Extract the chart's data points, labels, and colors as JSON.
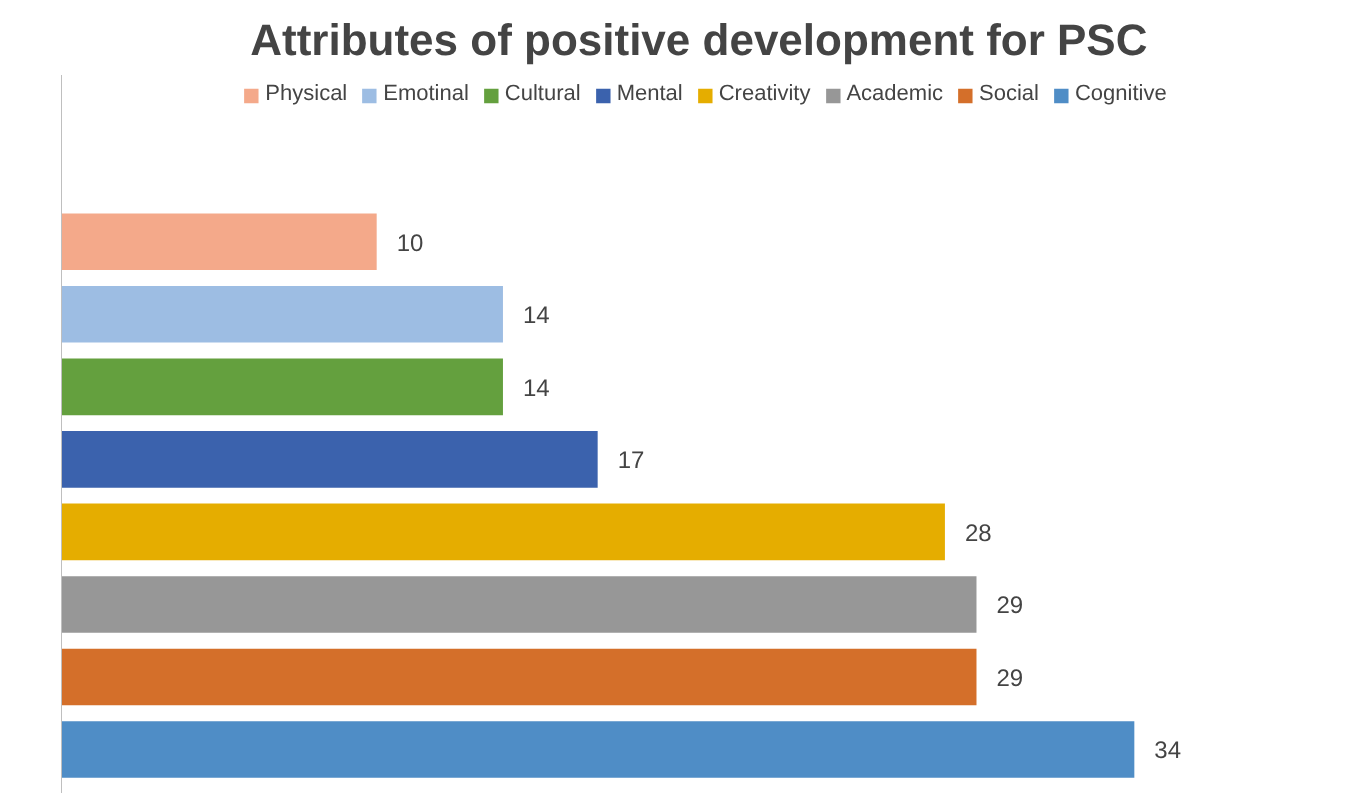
{
  "chart_data": {
    "type": "bar",
    "orientation": "horizontal",
    "title": "Attributes of positive development for  PSC",
    "categories": [
      null,
      null,
      null,
      null,
      null,
      null,
      null,
      null
    ],
    "series": [
      {
        "name": "Physical",
        "color": "#f4a98a",
        "values": [
          10,
          null,
          null,
          null,
          null,
          null,
          null,
          null
        ]
      },
      {
        "name": "Emotinal",
        "color": "#9dbde3",
        "values": [
          null,
          14,
          null,
          null,
          null,
          null,
          null,
          null
        ]
      },
      {
        "name": "Cultural",
        "color": "#64a03e",
        "values": [
          null,
          null,
          14,
          null,
          null,
          null,
          null,
          null
        ]
      },
      {
        "name": "Mental",
        "color": "#3b62ad",
        "values": [
          null,
          null,
          null,
          17,
          null,
          null,
          null,
          null
        ]
      },
      {
        "name": "Creativity",
        "color": "#e5ad00",
        "values": [
          null,
          null,
          null,
          null,
          28,
          null,
          null,
          null
        ]
      },
      {
        "name": "Academic",
        "color": "#979797",
        "values": [
          null,
          null,
          null,
          null,
          null,
          29,
          null,
          null
        ]
      },
      {
        "name": "Social",
        "color": "#d46f2a",
        "values": [
          null,
          null,
          null,
          null,
          null,
          null,
          29,
          null
        ]
      },
      {
        "name": "Cognitive",
        "color": "#4f8dc6",
        "values": [
          null,
          null,
          null,
          null,
          null,
          null,
          null,
          34
        ]
      }
    ],
    "stacked": true,
    "data_labels": true,
    "legend": "top",
    "grid": false
  }
}
